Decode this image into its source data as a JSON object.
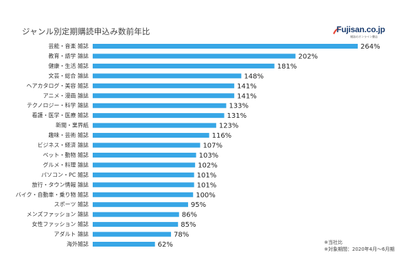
{
  "chart_data": {
    "type": "bar",
    "orientation": "horizontal",
    "title": "ジャンル別定期購読申込み数前年比",
    "categories": [
      "芸能・音楽 雑誌",
      "教育・語学 雑誌",
      "健康・生活 雑誌",
      "文芸・総合 雑誌",
      "ヘアカタログ・美容 雑誌",
      "アニメ・漫画 雑誌",
      "テクノロジー・科学 雑誌",
      "看護・医学・医療 雑誌",
      "新聞・業界紙",
      "趣味・芸術 雑誌",
      "ビジネス・経済 雑誌",
      "ペット・動物 雑誌",
      "グルメ・料理 雑誌",
      "パソコン・PC 雑誌",
      "旅行・タウン情報 雑誌",
      "バイク・自動車・乗り物 雑誌",
      "スポーツ 雑誌",
      "メンズファッション 雑誌",
      "女性ファッション 雑誌",
      "アダルト 雑誌",
      "海外雑誌"
    ],
    "values": [
      264,
      202,
      181,
      148,
      141,
      141,
      133,
      131,
      123,
      116,
      107,
      103,
      102,
      101,
      101,
      100,
      95,
      86,
      85,
      78,
      62
    ],
    "value_labels": [
      "264%",
      "202%",
      "181%",
      "148%",
      "141%",
      "141%",
      "133%",
      "131%",
      "123%",
      "116%",
      "107%",
      "103%",
      "102%",
      "101%",
      "101%",
      "100%",
      "95%",
      "86%",
      "85%",
      "78%",
      "62%"
    ],
    "unit": "%",
    "xlim": [
      0,
      264
    ],
    "grid": false,
    "bar_color": "#37a6e6"
  },
  "logo": {
    "text": "Fujisan.co.jp",
    "tagline": "雑誌のオンライン書店"
  },
  "notes": [
    "※当社比",
    "※対象期間：2020年4月～6月期"
  ]
}
